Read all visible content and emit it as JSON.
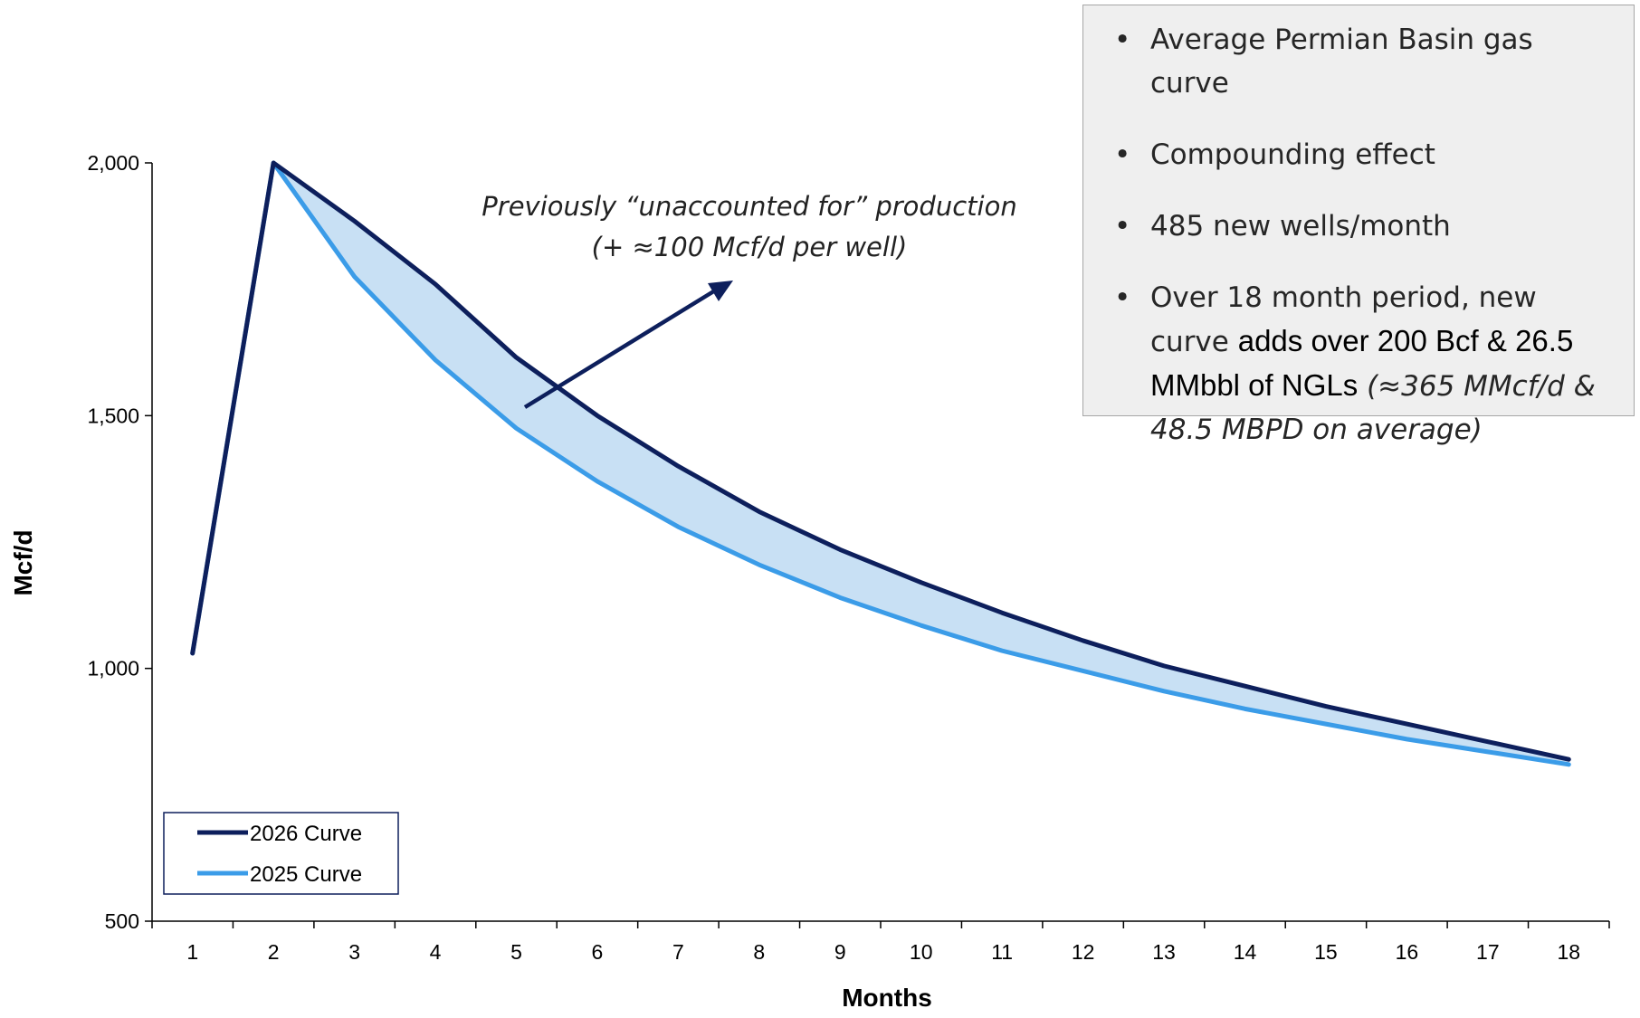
{
  "chart_data": {
    "type": "line",
    "xlabel": "Months",
    "ylabel": "Mcf/d",
    "xlim": [
      1,
      18
    ],
    "ylim": [
      500,
      2000
    ],
    "yticks": [
      500,
      1000,
      1500,
      2000
    ],
    "ytick_labels": [
      "500",
      "1,000",
      "1,500",
      "2,000"
    ],
    "categories": [
      "1",
      "2",
      "3",
      "4",
      "5",
      "6",
      "7",
      "8",
      "9",
      "10",
      "11",
      "12",
      "13",
      "14",
      "15",
      "16",
      "17",
      "18"
    ],
    "series": [
      {
        "name": "2026 Curve",
        "color": "#0d1f5c",
        "values": [
          1030,
          2000,
          1885,
          1760,
          1615,
          1500,
          1400,
          1310,
          1235,
          1170,
          1110,
          1055,
          1005,
          965,
          925,
          890,
          855,
          820
        ]
      },
      {
        "name": "2025 Curve",
        "color": "#3b9ce8",
        "values": [
          1030,
          2000,
          1775,
          1610,
          1475,
          1370,
          1280,
          1205,
          1140,
          1085,
          1035,
          995,
          955,
          920,
          890,
          860,
          835,
          810
        ]
      }
    ],
    "fill_between": {
      "color": "#c8e0f4"
    },
    "annotation": {
      "line1": "Previously “unaccounted for” production",
      "line2": "(+ ≈100 Mcf/d per well)",
      "arrow_color": "#0d1f5c"
    },
    "legend": {
      "placement": "bottom-left"
    }
  },
  "notes": {
    "items": [
      {
        "text": "Average Permian Basin gas curve"
      },
      {
        "text": "Compounding effect"
      },
      {
        "text": "485 new wells/month"
      }
    ],
    "last_item": {
      "plain": "Over 18 month period, new curve ",
      "bold": "adds over 200 Bcf & 26.5 MMbbl of NGLs",
      "italic": " (≈365 MMcf/d & 48.5 MBPD on average)"
    },
    "bullet": "•"
  }
}
